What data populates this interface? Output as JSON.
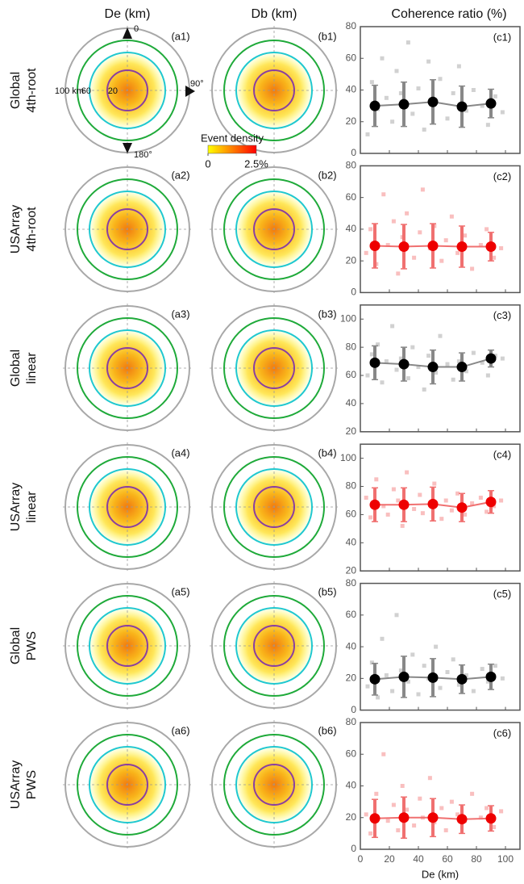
{
  "column_titles": [
    "De (km)",
    "Db (km)",
    "Coherence ratio (%)"
  ],
  "row_labels": [
    [
      "Global",
      "4th-root"
    ],
    [
      "USArray",
      "4th-root"
    ],
    [
      "Global",
      "linear"
    ],
    [
      "USArray",
      "linear"
    ],
    [
      "Global",
      "PWS"
    ],
    [
      "USArray",
      "PWS"
    ]
  ],
  "polar_labels": {
    "a": [
      "(a1)",
      "(a2)",
      "(a3)",
      "(a4)",
      "(a5)",
      "(a6)"
    ],
    "b": [
      "(b1)",
      "(b2)",
      "(b3)",
      "(b4)",
      "(b5)",
      "(b6)"
    ]
  },
  "polar_annotations": {
    "directions": [
      "0",
      "90°",
      "180°"
    ],
    "radii": [
      "100 km",
      "60",
      "20"
    ]
  },
  "colorbar": {
    "title": "Event density",
    "clim": [
      0,
      2.5
    ],
    "ticks": [
      0,
      {
        "value": 2.5,
        "label": "2.5%"
      }
    ],
    "colors": [
      "#ffff00",
      "#ff0000"
    ]
  },
  "chart_data": [
    {
      "type": "scatter",
      "label": "(c1)",
      "xlim": [
        0,
        110
      ],
      "xticks": [
        0,
        20,
        40,
        60,
        80,
        100
      ],
      "ylim": [
        0,
        80
      ],
      "yticks": [
        0,
        20,
        40,
        60,
        80
      ],
      "color": "#cccccc",
      "points": {
        "x": [
          5,
          8,
          12,
          15,
          18,
          22,
          25,
          28,
          33,
          36,
          40,
          44,
          47,
          52,
          55,
          60,
          64,
          68,
          73,
          78,
          84,
          88,
          93,
          98
        ],
        "y": [
          12,
          45,
          28,
          60,
          35,
          20,
          52,
          38,
          70,
          25,
          41,
          15,
          58,
          33,
          47,
          22,
          38,
          55,
          27,
          40,
          30,
          18,
          36,
          26
        ]
      },
      "means": {
        "x": [
          10,
          30,
          50,
          70,
          90
        ],
        "values": [
          30,
          31,
          32.5,
          29.5,
          31.5
        ],
        "errors": [
          13,
          14,
          14,
          13,
          9
        ],
        "color": "#000000",
        "line_color": "#888888"
      }
    },
    {
      "type": "scatter",
      "label": "(c2)",
      "xlim": [
        0,
        110
      ],
      "xticks": [
        0,
        20,
        40,
        60,
        80,
        100
      ],
      "ylim": [
        0,
        80
      ],
      "yticks": [
        0,
        20,
        40,
        60,
        80
      ],
      "color": "#f8b8b8",
      "points": {
        "x": [
          4,
          7,
          11,
          16,
          19,
          23,
          26,
          29,
          32,
          37,
          41,
          43,
          48,
          51,
          56,
          59,
          63,
          67,
          72,
          77,
          83,
          87,
          92,
          97
        ],
        "y": [
          25,
          40,
          18,
          62,
          30,
          45,
          12,
          35,
          50,
          22,
          38,
          65,
          28,
          42,
          20,
          33,
          48,
          25,
          36,
          15,
          30,
          40,
          22,
          28
        ]
      },
      "means": {
        "x": [
          10,
          30,
          50,
          70,
          90
        ],
        "values": [
          29.5,
          29,
          29.5,
          29,
          29
        ],
        "errors": [
          14,
          14,
          14,
          13,
          9
        ],
        "color": "#ee0000",
        "line_color": "#f07070"
      }
    },
    {
      "type": "scatter",
      "label": "(c3)",
      "xlim": [
        0,
        110
      ],
      "xticks": [
        0,
        20,
        40,
        60,
        80,
        100
      ],
      "ylim": [
        20,
        110
      ],
      "yticks": [
        20,
        40,
        60,
        80,
        100
      ],
      "color": "#cccccc",
      "points": {
        "x": [
          5,
          8,
          12,
          15,
          18,
          22,
          25,
          28,
          33,
          36,
          40,
          44,
          47,
          52,
          55,
          60,
          64,
          68,
          73,
          78,
          84,
          88,
          93,
          98
        ],
        "y": [
          60,
          75,
          82,
          55,
          70,
          95,
          64,
          72,
          58,
          80,
          66,
          50,
          74,
          62,
          88,
          68,
          57,
          70,
          63,
          76,
          69,
          60,
          74,
          72
        ]
      },
      "means": {
        "x": [
          10,
          30,
          50,
          70,
          90
        ],
        "values": [
          69,
          68,
          66,
          66,
          72
        ],
        "errors": [
          12,
          12,
          12,
          10,
          6
        ],
        "color": "#000000",
        "line_color": "#888888"
      }
    },
    {
      "type": "scatter",
      "label": "(c4)",
      "xlim": [
        0,
        110
      ],
      "xticks": [
        0,
        20,
        40,
        60,
        80,
        100
      ],
      "ylim": [
        20,
        110
      ],
      "yticks": [
        20,
        40,
        60,
        80,
        100
      ],
      "color": "#f8b8b8",
      "points": {
        "x": [
          4,
          7,
          11,
          16,
          19,
          23,
          26,
          29,
          32,
          37,
          41,
          43,
          48,
          51,
          56,
          59,
          63,
          67,
          72,
          77,
          83,
          87,
          92,
          97
        ],
        "y": [
          72,
          58,
          85,
          66,
          60,
          78,
          70,
          52,
          90,
          64,
          74,
          61,
          68,
          82,
          57,
          70,
          63,
          75,
          60,
          68,
          72,
          62,
          66,
          70
        ]
      },
      "means": {
        "x": [
          10,
          30,
          50,
          70,
          90
        ],
        "values": [
          67,
          67,
          67.5,
          65,
          69
        ],
        "errors": [
          12,
          12,
          12,
          10,
          8
        ],
        "color": "#ee0000",
        "line_color": "#f07070"
      }
    },
    {
      "type": "scatter",
      "label": "(c5)",
      "xlim": [
        0,
        110
      ],
      "xticks": [
        0,
        20,
        40,
        60,
        80,
        100
      ],
      "ylim": [
        0,
        80
      ],
      "yticks": [
        0,
        20,
        40,
        60,
        80
      ],
      "color": "#cccccc",
      "points": {
        "x": [
          5,
          8,
          12,
          15,
          18,
          22,
          25,
          28,
          33,
          36,
          40,
          44,
          47,
          52,
          55,
          60,
          64,
          68,
          73,
          78,
          84,
          88,
          93,
          98
        ],
        "y": [
          15,
          30,
          8,
          45,
          22,
          12,
          60,
          25,
          18,
          35,
          10,
          28,
          20,
          40,
          14,
          24,
          32,
          16,
          22,
          12,
          26,
          18,
          28,
          20
        ]
      },
      "means": {
        "x": [
          10,
          30,
          50,
          70,
          90
        ],
        "values": [
          19.5,
          21,
          20.5,
          19.5,
          21
        ],
        "errors": [
          10,
          13,
          12,
          9,
          8
        ],
        "color": "#000000",
        "line_color": "#888888"
      }
    },
    {
      "type": "scatter",
      "label": "(c6)",
      "xlim": [
        0,
        110
      ],
      "xticks": [
        0,
        20,
        40,
        60,
        80,
        100
      ],
      "xticklabels": true,
      "xlabel": "De (km)",
      "ylim": [
        0,
        80
      ],
      "yticks": [
        0,
        20,
        40,
        60,
        80
      ],
      "color": "#f8b8b8",
      "points": {
        "x": [
          4,
          7,
          11,
          16,
          19,
          23,
          26,
          29,
          32,
          37,
          41,
          43,
          48,
          51,
          56,
          59,
          63,
          67,
          72,
          77,
          83,
          87,
          92,
          97
        ],
        "y": [
          22,
          10,
          35,
          60,
          18,
          28,
          12,
          40,
          25,
          15,
          32,
          20,
          45,
          17,
          26,
          12,
          30,
          22,
          18,
          35,
          20,
          26,
          14,
          24
        ]
      },
      "means": {
        "x": [
          10,
          30,
          50,
          70,
          90
        ],
        "values": [
          19.5,
          20,
          20,
          19,
          19.5
        ],
        "errors": [
          12,
          13,
          12,
          9,
          8
        ],
        "color": "#ee0000",
        "line_color": "#f07070"
      }
    }
  ]
}
